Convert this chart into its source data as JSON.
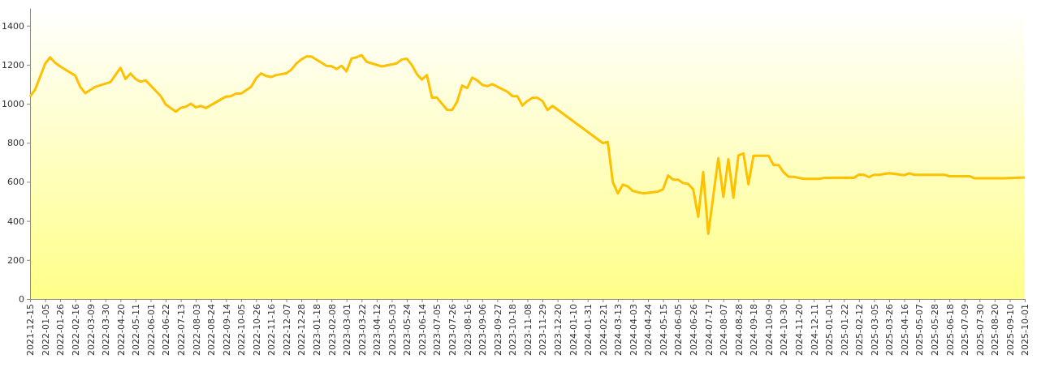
{
  "chart_data": {
    "type": "line",
    "ylim": [
      0,
      1490
    ],
    "yticks": [
      0,
      200,
      400,
      600,
      800,
      1000,
      1200,
      1400
    ],
    "xlim": [
      "2021-12-15",
      "2025-10-01"
    ],
    "xticks": [
      "2021-12-15",
      "2022-01-05",
      "2022-01-26",
      "2022-02-16",
      "2022-03-09",
      "2022-03-30",
      "2022-04-20",
      "2022-05-11",
      "2022-06-01",
      "2022-06-22",
      "2022-07-13",
      "2022-08-03",
      "2022-08-24",
      "2022-09-14",
      "2022-10-05",
      "2022-10-26",
      "2022-11-16",
      "2022-12-07",
      "2022-12-28",
      "2023-01-18",
      "2023-02-08",
      "2023-03-01",
      "2023-03-22",
      "2023-04-12",
      "2023-05-03",
      "2023-05-24",
      "2023-06-14",
      "2023-07-05",
      "2023-07-26",
      "2023-08-16",
      "2023-09-06",
      "2023-09-27",
      "2023-10-18",
      "2023-11-08",
      "2023-11-29",
      "2023-12-20",
      "2024-01-10",
      "2024-01-31",
      "2024-02-21",
      "2024-03-13",
      "2024-04-03",
      "2024-04-24",
      "2024-05-15",
      "2024-06-05",
      "2024-06-26",
      "2024-07-17",
      "2024-08-07",
      "2024-08-28",
      "2024-09-18",
      "2024-10-09",
      "2024-10-30",
      "2024-11-20",
      "2024-12-11",
      "2025-01-01",
      "2025-01-22",
      "2025-02-12",
      "2025-03-05",
      "2025-03-26",
      "2025-04-16",
      "2025-05-07",
      "2025-05-28",
      "2025-06-18",
      "2025-07-09",
      "2025-07-30",
      "2025-08-20",
      "2025-09-10",
      "2025-10-01"
    ],
    "grid": false,
    "marker": "none",
    "line_style": "solid",
    "x": [
      "2021-12-15",
      "2021-12-22",
      "2022-01-05",
      "2022-01-12",
      "2022-01-19",
      "2022-01-26",
      "2022-02-16",
      "2022-02-23",
      "2022-03-02",
      "2022-03-16",
      "2022-04-06",
      "2022-04-20",
      "2022-04-27",
      "2022-05-04",
      "2022-05-11",
      "2022-05-18",
      "2022-05-25",
      "2022-06-15",
      "2022-06-22",
      "2022-07-06",
      "2022-07-13",
      "2022-07-20",
      "2022-07-27",
      "2022-08-03",
      "2022-08-10",
      "2022-08-17",
      "2022-09-14",
      "2022-09-21",
      "2022-09-28",
      "2022-10-05",
      "2022-10-19",
      "2022-10-26",
      "2022-11-02",
      "2022-11-09",
      "2022-11-16",
      "2022-11-23",
      "2022-12-07",
      "2022-12-14",
      "2022-12-21",
      "2022-12-28",
      "2023-01-04",
      "2023-01-11",
      "2023-02-01",
      "2023-02-08",
      "2023-02-15",
      "2023-02-22",
      "2023-03-01",
      "2023-03-08",
      "2023-03-15",
      "2023-03-22",
      "2023-03-29",
      "2023-04-19",
      "2023-05-10",
      "2023-05-17",
      "2023-05-24",
      "2023-05-31",
      "2023-06-07",
      "2023-06-14",
      "2023-06-21",
      "2023-06-28",
      "2023-07-05",
      "2023-07-19",
      "2023-07-26",
      "2023-08-02",
      "2023-08-09",
      "2023-08-16",
      "2023-08-23",
      "2023-08-30",
      "2023-09-06",
      "2023-09-13",
      "2023-09-20",
      "2023-10-11",
      "2023-10-18",
      "2023-10-25",
      "2023-11-01",
      "2023-11-08",
      "2023-11-15",
      "2023-11-22",
      "2023-11-29",
      "2023-12-06",
      "2023-12-13",
      "2024-02-21",
      "2024-02-28",
      "2024-03-06",
      "2024-03-13",
      "2024-03-20",
      "2024-03-27",
      "2024-04-03",
      "2024-04-17",
      "2024-05-08",
      "2024-05-15",
      "2024-05-22",
      "2024-05-29",
      "2024-06-05",
      "2024-06-12",
      "2024-06-19",
      "2024-06-26",
      "2024-07-03",
      "2024-07-10",
      "2024-07-17",
      "2024-07-31",
      "2024-08-07",
      "2024-08-14",
      "2024-08-21",
      "2024-08-28",
      "2024-09-04",
      "2024-09-11",
      "2024-09-18",
      "2024-10-09",
      "2024-10-16",
      "2024-10-23",
      "2024-10-30",
      "2024-11-06",
      "2024-11-13",
      "2024-11-27",
      "2024-12-18",
      "2024-12-25",
      "2025-01-22",
      "2025-02-05",
      "2025-02-12",
      "2025-02-19",
      "2025-02-26",
      "2025-03-05",
      "2025-03-12",
      "2025-03-26",
      "2025-04-16",
      "2025-04-23",
      "2025-04-30",
      "2025-06-11",
      "2025-06-18",
      "2025-07-16",
      "2025-07-23",
      "2025-09-03",
      "2025-10-01"
    ],
    "series": [
      {
        "color": "#ffc000",
        "values": [
          1037,
          1072,
          1205,
          1238,
          1210,
          1191,
          1144,
          1086,
          1054,
          1087,
          1111,
          1184,
          1127,
          1155,
          1127,
          1113,
          1120,
          1040,
          996,
          960,
          979,
          985,
          1000,
          982,
          989,
          978,
          1037,
          1039,
          1052,
          1052,
          1086,
          1131,
          1156,
          1142,
          1137,
          1147,
          1156,
          1174,
          1206,
          1227,
          1242,
          1242,
          1194,
          1192,
          1178,
          1194,
          1166,
          1232,
          1238,
          1249,
          1215,
          1191,
          1207,
          1227,
          1231,
          1198,
          1152,
          1124,
          1147,
          1031,
          1031,
          969,
          968,
          1010,
          1093,
          1080,
          1134,
          1120,
          1097,
          1090,
          1100,
          1062,
          1039,
          1039,
          991,
          1014,
          1030,
          1030,
          1014,
          968,
          989,
          799,
          804,
          598,
          541,
          586,
          576,
          553,
          541,
          550,
          562,
          633,
          611,
          611,
          594,
          589,
          561,
          421,
          651,
          334,
          721,
          523,
          716,
          519,
          735,
          746,
          587,
          734,
          734,
          686,
          686,
          649,
          626,
          626,
          615,
          615,
          620,
          622,
          621,
          637,
          636,
          624,
          636,
          636,
          644,
          634,
          644,
          636,
          636,
          629,
          629,
          618,
          618,
          623
        ]
      }
    ]
  }
}
